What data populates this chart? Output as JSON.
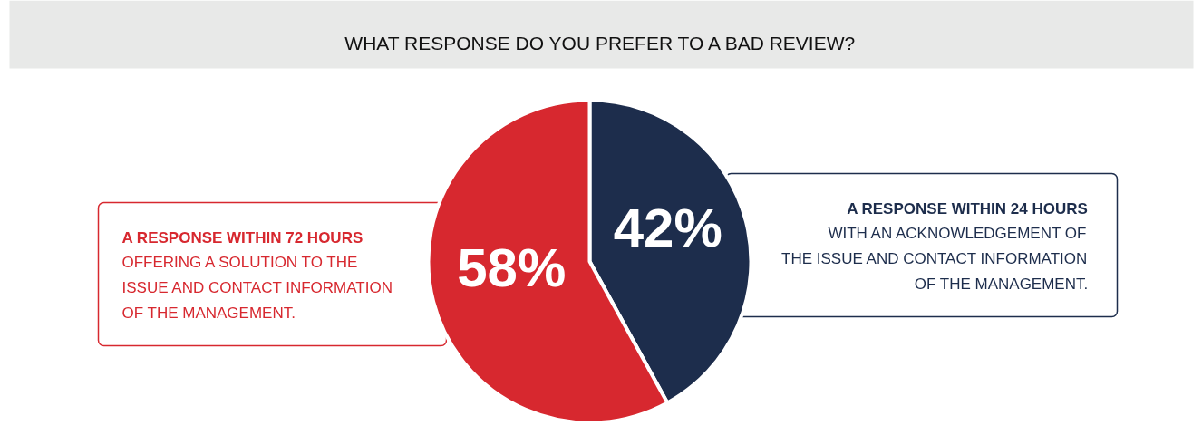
{
  "chart_data": {
    "type": "pie",
    "title": "WHAT RESPONSE DO YOU PREFER TO A BAD REVIEW?",
    "categories": [
      "A RESPONSE WITHIN 24 HOURS",
      "A RESPONSE WITHIN 72 HOURS"
    ],
    "values": [
      42,
      58
    ],
    "colors": [
      "#1d2d4c",
      "#d7282f"
    ],
    "value_labels": [
      "42%",
      "58%"
    ],
    "annotations": [
      "WITH AN ACKNOWLEDGEMENT OF\nTHE ISSUE AND CONTACT INFORMATION\nOF THE MANAGEMENT.",
      "OFFERING A SOLUTION TO THE\nISSUE AND CONTACT INFORMATION\nOF THE MANAGEMENT."
    ]
  }
}
